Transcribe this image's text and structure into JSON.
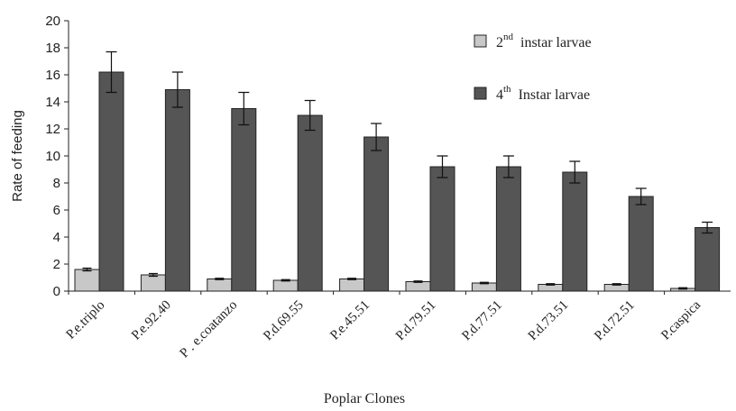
{
  "chart_data": {
    "type": "bar",
    "title": "",
    "xlabel": "Poplar Clones",
    "ylabel": "Rate of feeding",
    "ylim": [
      0,
      20
    ],
    "yticks": [
      "0",
      "2",
      "4",
      "6",
      "8",
      "10",
      "12",
      "14",
      "16",
      "18",
      "20"
    ],
    "grid": false,
    "legend_position": "top-right",
    "categories": [
      "P.e.triplo",
      "P.e.92.40",
      "P . e.coatanzo",
      "P.d.69.55",
      "P.e.45.51",
      "P.d.79.51",
      "P.d.77.51",
      "P.d.73.51",
      "P.d.72.51",
      "P.caspica"
    ],
    "series": [
      {
        "name": "2nd instar larvae",
        "legend_main": "2",
        "legend_sup": "nd",
        "legend_rest": "instar larvae",
        "color": "#c8c8c8",
        "values": [
          1.6,
          1.2,
          0.9,
          0.8,
          0.9,
          0.7,
          0.6,
          0.5,
          0.5,
          0.2
        ],
        "errors": [
          0.1,
          0.1,
          0.05,
          0.05,
          0.05,
          0.05,
          0.05,
          0.05,
          0.05,
          0.05
        ]
      },
      {
        "name": "4th Instar larvae",
        "legend_main": "4",
        "legend_sup": "th",
        "legend_rest": "Instar larvae",
        "color": "#555555",
        "values": [
          16.2,
          14.9,
          13.5,
          13.0,
          11.4,
          9.2,
          9.2,
          8.8,
          7.0,
          4.7
        ],
        "errors": [
          1.5,
          1.3,
          1.2,
          1.1,
          1.0,
          0.8,
          0.8,
          0.8,
          0.6,
          0.4
        ]
      }
    ]
  }
}
